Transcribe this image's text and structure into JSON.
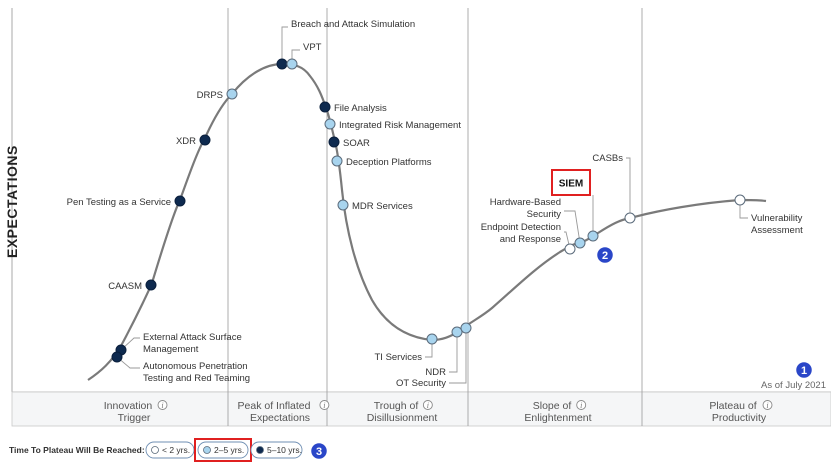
{
  "chart_data": {
    "type": "scatter",
    "title": "",
    "ylabel": "EXPECTATIONS",
    "as_of": "As of July 2021",
    "phases": [
      {
        "line1": "Innovation",
        "line2": "Trigger"
      },
      {
        "line1": "Peak of Inflated",
        "line2": "Expectations"
      },
      {
        "line1": "Trough of",
        "line2": "Disillusionment"
      },
      {
        "line1": "Slope of",
        "line2": "Enlightenment"
      },
      {
        "line1": "Plateau of",
        "line2": "Productivity"
      }
    ],
    "points": [
      {
        "name": "Breach and Attack Simulation",
        "years": "5–10 yrs."
      },
      {
        "name": "VPT",
        "years": "2–5 yrs."
      },
      {
        "name": "DRPS",
        "years": "2–5 yrs."
      },
      {
        "name": "XDR",
        "years": "5–10 yrs."
      },
      {
        "name": "File Analysis",
        "years": "5–10 yrs."
      },
      {
        "name": "Integrated Risk Management",
        "years": "2–5 yrs."
      },
      {
        "name": "SOAR",
        "years": "5–10 yrs."
      },
      {
        "name": "Deception Platforms",
        "years": "2–5 yrs."
      },
      {
        "name": "Pen Testing as a Service",
        "years": "5–10 yrs."
      },
      {
        "name": "MDR Services",
        "years": "2–5 yrs."
      },
      {
        "name": "CAASM",
        "years": "5–10 yrs."
      },
      {
        "name": "External Attack Surface Management",
        "years": "5–10 yrs."
      },
      {
        "name": "Autonomous Penetration Testing and Red Teaming",
        "years": "5–10 yrs."
      },
      {
        "name": "TI Services",
        "years": "2–5 yrs."
      },
      {
        "name": "NDR",
        "years": "2–5 yrs."
      },
      {
        "name": "OT Security",
        "years": "2–5 yrs."
      },
      {
        "name": "SIEM",
        "years": "2–5 yrs."
      },
      {
        "name": "Hardware-Based Security",
        "years": "2–5 yrs."
      },
      {
        "name": "Endpoint Detection and Response",
        "years": "< 2 yrs."
      },
      {
        "name": "CASBs",
        "years": "< 2 yrs."
      },
      {
        "name": "Vulnerability Assessment",
        "years": "< 2 yrs."
      }
    ],
    "label_text": {
      "Breach and Attack Simulation": [
        "Breach and Attack Simulation"
      ],
      "VPT": [
        "VPT"
      ],
      "DRPS": [
        "DRPS"
      ],
      "XDR": [
        "XDR"
      ],
      "File Analysis": [
        "File Analysis"
      ],
      "Integrated Risk Management": [
        "Integrated Risk Management"
      ],
      "SOAR": [
        "SOAR"
      ],
      "Deception Platforms": [
        "Deception Platforms"
      ],
      "Pen Testing as a Service": [
        "Pen Testing as a Service"
      ],
      "MDR Services": [
        "MDR Services"
      ],
      "CAASM": [
        "CAASM"
      ],
      "External Attack Surface Management": [
        "External Attack Surface",
        "Management"
      ],
      "Autonomous Penetration Testing and Red Teaming": [
        "Autonomous Penetration",
        "Testing and Red Teaming"
      ],
      "TI Services": [
        "TI Services"
      ],
      "NDR": [
        "NDR"
      ],
      "OT Security": [
        "OT Security"
      ],
      "SIEM": [
        "SIEM"
      ],
      "Hardware-Based Security": [
        "Hardware-Based",
        "Security"
      ],
      "Endpoint Detection and Response": [
        "Endpoint Detection",
        "and Response"
      ],
      "CASBs": [
        "CASBs"
      ],
      "Vulnerability Assessment": [
        "Vulnerability",
        "Assessment"
      ]
    },
    "highlight": "SIEM",
    "legend": {
      "title": "Time To Plateau Will Be Reached:",
      "items": [
        {
          "label": "< 2 yrs.",
          "fill": "#ffffff",
          "highlighted": false
        },
        {
          "label": "2–5 yrs.",
          "fill": "#a8d4ee",
          "highlighted": true
        },
        {
          "label": "5–10 yrs.",
          "fill": "#0e2a4f",
          "highlighted": false
        }
      ]
    },
    "callouts": [
      "1",
      "2",
      "3"
    ]
  },
  "colors": {
    "curve": "#7a7a7a",
    "axis": "#9a9a9a",
    "dark_dot": "#0e2a4f",
    "light_dot": "#a8d4ee",
    "white_dot": "#ffffff",
    "highlight_box": "#e02020",
    "badge": "#2a46c8"
  }
}
